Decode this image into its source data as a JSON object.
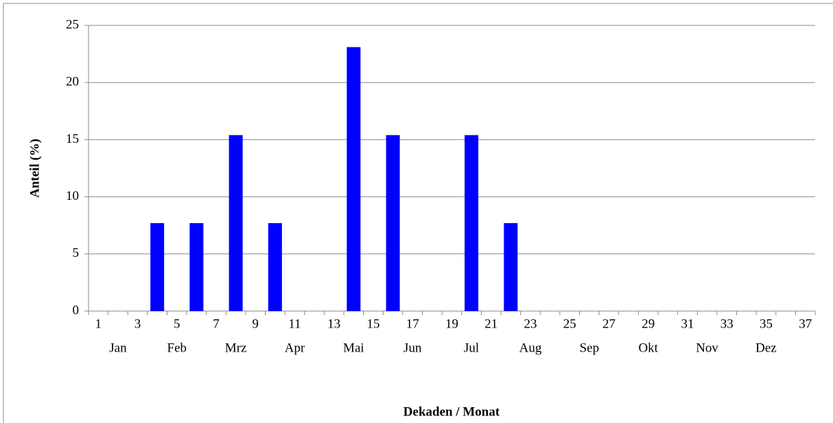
{
  "chart_data": {
    "type": "bar",
    "x_label": "Dekaden / Monat",
    "y_label": "Anteil (%)",
    "categories": [
      "1",
      null,
      "3",
      null,
      "5",
      null,
      "7",
      null,
      "9",
      null,
      "11",
      null,
      "13",
      null,
      "15",
      null,
      "17",
      null,
      "19",
      null,
      "21",
      null,
      "23",
      null,
      "25",
      null,
      "27",
      null,
      "29",
      null,
      "31",
      null,
      "33",
      null,
      "35",
      null,
      "37"
    ],
    "values": [
      0,
      0,
      0,
      7.7,
      0,
      7.7,
      0,
      15.4,
      0,
      7.7,
      0,
      0,
      0,
      23.1,
      0,
      15.4,
      0,
      0,
      0,
      15.4,
      0,
      7.7,
      0,
      0,
      0,
      0,
      0,
      0,
      0,
      0,
      0,
      0,
      0,
      0,
      0,
      0,
      0
    ],
    "month_labels": [
      "Jan",
      "Feb",
      "Mrz",
      "Apr",
      "Mai",
      "Jun",
      "Jul",
      "Aug",
      "Sep",
      "Okt",
      "Nov",
      "Dez"
    ],
    "color": "#0000ff",
    "ylim": [
      0,
      25
    ],
    "yticks": [
      0,
      5,
      10,
      15,
      20,
      25
    ],
    "grid": true
  }
}
